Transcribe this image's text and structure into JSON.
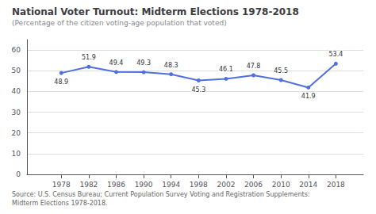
{
  "chart_data": {
    "type": "line",
    "title": "National Voter Turnout: Midterm Elections 1978-2018",
    "subtitle": "(Percentage of the citizen voting-age population that voted)",
    "source": "Source: U.S. Census Bureau; Current Population Survey Voting and Registration Supplements:\nMidterm Elections 1978-2018.",
    "x": [
      1978,
      1982,
      1986,
      1990,
      1994,
      1998,
      2002,
      2006,
      2010,
      2014,
      2018
    ],
    "values": [
      48.9,
      51.9,
      49.4,
      49.3,
      48.3,
      45.3,
      46.1,
      47.8,
      45.5,
      41.9,
      53.4
    ],
    "xlim": [
      1973,
      2022
    ],
    "xticks": [
      1978,
      1982,
      1986,
      1990,
      1994,
      1998,
      2002,
      2006,
      2010,
      2014,
      2018
    ],
    "ylim": [
      0,
      65
    ],
    "yticks": [
      0,
      10,
      20,
      30,
      40,
      50,
      60
    ],
    "grid": true,
    "data_labels": true,
    "marker": "circle"
  }
}
